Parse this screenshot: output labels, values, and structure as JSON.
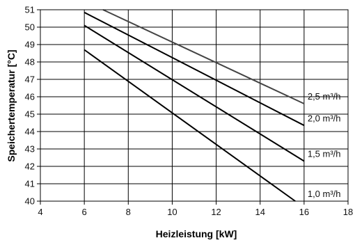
{
  "chart_data": {
    "type": "line",
    "title": "",
    "xlabel": "Heizleistung [kW]",
    "ylabel": "Speichertemperatur [°C]",
    "xlim": [
      4,
      18
    ],
    "ylim": [
      40,
      51
    ],
    "x_ticks": [
      "4",
      "6",
      "8",
      "10",
      "12",
      "14",
      "16",
      "18"
    ],
    "y_ticks": [
      "40",
      "41",
      "42",
      "43",
      "44",
      "45",
      "46",
      "47",
      "48",
      "49",
      "50",
      "51"
    ],
    "grid": true,
    "series": [
      {
        "name": "1,0 m³/h",
        "color": "#000000",
        "points": [
          [
            6,
            48.7
          ],
          [
            15.6,
            40.0
          ]
        ]
      },
      {
        "name": "1,5 m³/h",
        "color": "#000000",
        "points": [
          [
            6,
            50.1
          ],
          [
            16,
            42.3
          ]
        ]
      },
      {
        "name": "2,0 m³/h",
        "color": "#000000",
        "points": [
          [
            6,
            50.85
          ],
          [
            16,
            44.35
          ]
        ]
      },
      {
        "name": "2,5 m³/h",
        "color": "#444444",
        "points": [
          [
            6.85,
            51.0
          ],
          [
            16,
            45.6
          ]
        ]
      }
    ]
  }
}
